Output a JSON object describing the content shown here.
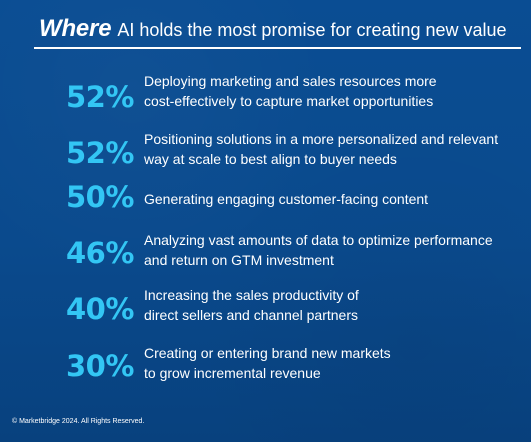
{
  "title": {
    "emphasis": "Where",
    "rest": "AI holds the most promise for creating new value"
  },
  "stats": [
    {
      "value": "52%",
      "lines": [
        "Deploying marketing and sales resources more",
        "cost-effectively to capture market opportunities"
      ]
    },
    {
      "value": "52%",
      "lines": [
        "Positioning solutions in a more personalized and relevant",
        "way at scale to best align to buyer needs"
      ]
    },
    {
      "value": "50%",
      "lines": [
        "Generating engaging customer-facing content"
      ]
    },
    {
      "value": "46%",
      "lines": [
        "Analyzing vast amounts of data to optimize performance",
        "and return on GTM investment"
      ]
    },
    {
      "value": "40%",
      "lines": [
        "Increasing the sales productivity of",
        "direct sellers and channel partners"
      ]
    },
    {
      "value": "30%",
      "lines": [
        "Creating or entering brand new markets",
        "to grow incremental revenue"
      ]
    }
  ],
  "footer": {
    "copyright": "© Marketbridge 2024. All Rights Reserved."
  },
  "colors": {
    "background": "#0a4a8d",
    "accent": "#33c6f4",
    "text": "#ffffff"
  }
}
